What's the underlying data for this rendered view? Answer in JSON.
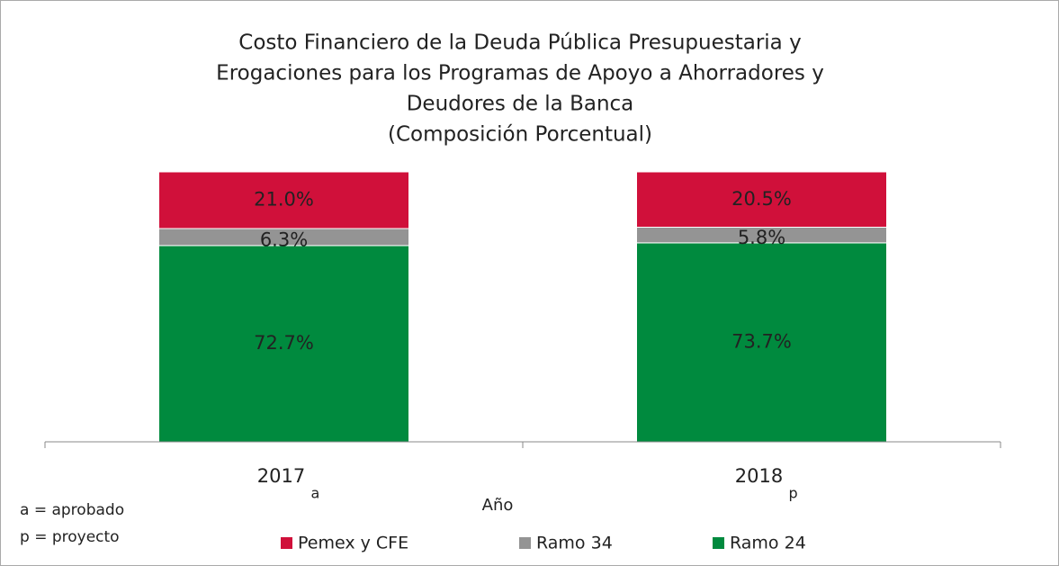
{
  "chart_data": {
    "type": "stacked_bar",
    "title": [
      "Costo Financiero de la Deuda Pública Presupuestaria y",
      "Erogaciones para los Programas de Apoyo a Ahorradores y",
      "Deudores de la Banca",
      "(Composición Porcentual)"
    ],
    "categories": [
      "2017",
      "2018"
    ],
    "category_suffixes": [
      "a",
      "p"
    ],
    "x_label": "Año",
    "ylim": [
      0,
      100
    ],
    "series": [
      {
        "name": "Pemex y CFE",
        "color": "#d0103a",
        "values": [
          21.0,
          20.5
        ],
        "value_labels": [
          "21.0%",
          "20.5%"
        ]
      },
      {
        "name": "Ramo 34",
        "color": "#949494",
        "values": [
          6.3,
          5.8
        ],
        "value_labels": [
          "6.3%",
          "5.8%"
        ]
      },
      {
        "name": "Ramo 24",
        "color": "#008a3e",
        "values": [
          72.7,
          73.7
        ],
        "value_labels": [
          "72.7%",
          "73.7%"
        ]
      }
    ],
    "notes": [
      "a = aprobado",
      "p = proyecto"
    ]
  }
}
